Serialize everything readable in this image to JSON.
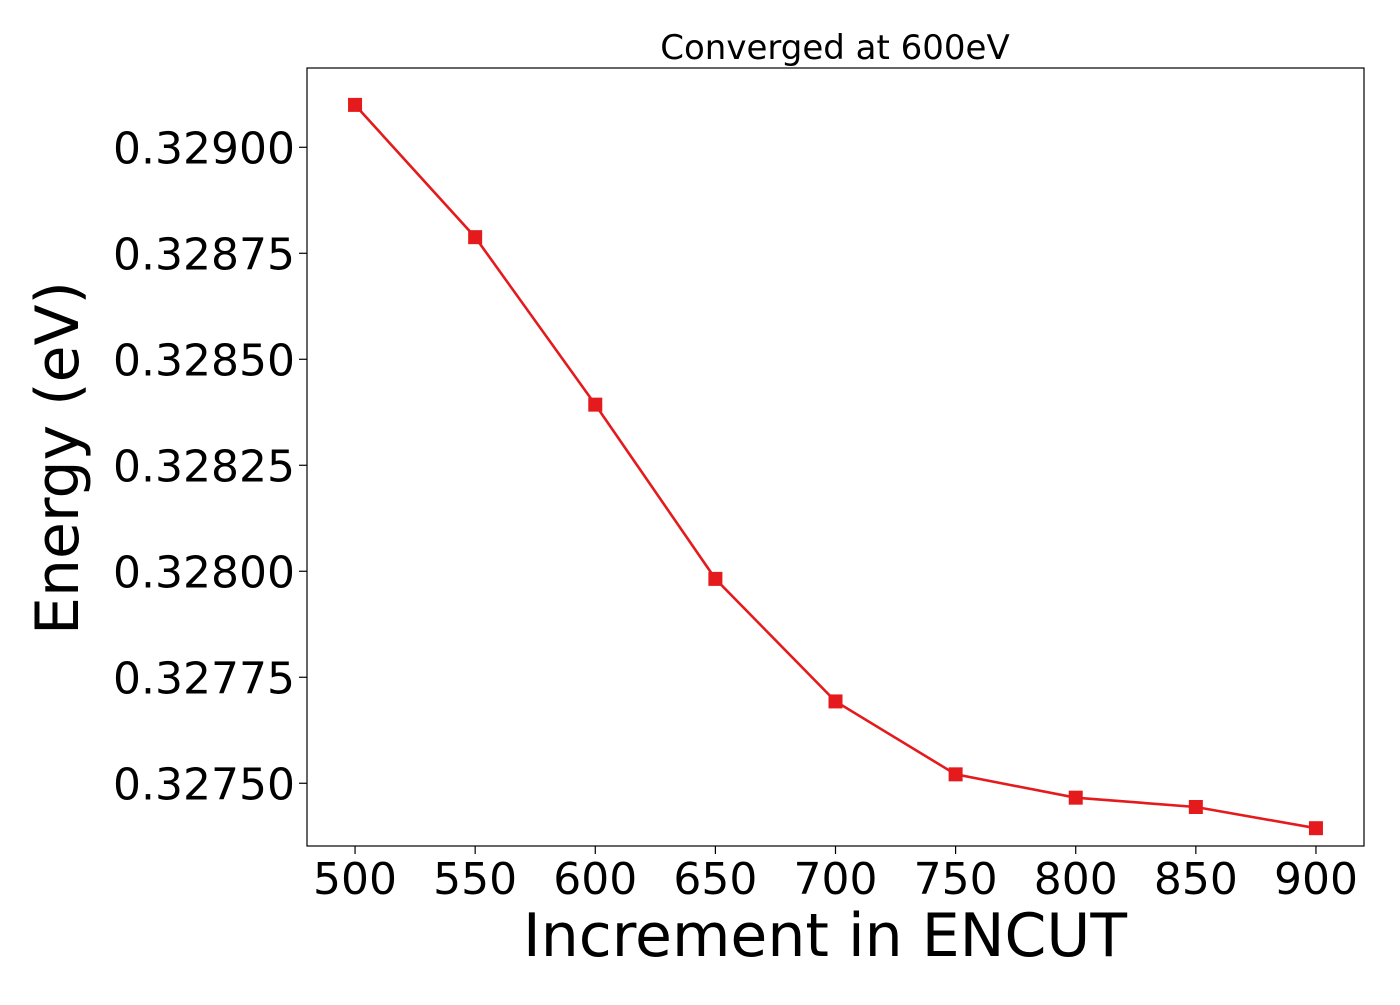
{
  "chart_data": {
    "type": "line",
    "title": "Converged at 600eV",
    "xlabel": "Increment in ENCUT",
    "ylabel": "Energy (eV)",
    "x": [
      500,
      550,
      600,
      650,
      700,
      750,
      800,
      850,
      900
    ],
    "series": [
      {
        "values": [
          0.3291,
          0.328788,
          0.328393,
          0.327982,
          0.327693,
          0.327521,
          0.327466,
          0.327444,
          0.327394
        ],
        "color": "#e41a1c",
        "marker": "square"
      }
    ],
    "xticks": [
      "500",
      "550",
      "600",
      "650",
      "700",
      "750",
      "800",
      "850",
      "900"
    ],
    "yticks": [
      "0.32750",
      "0.32775",
      "0.32800",
      "0.32825",
      "0.32850",
      "0.32875",
      "0.32900"
    ],
    "xlim": [
      480,
      920
    ],
    "ylim": [
      0.327352,
      0.329187
    ],
    "grid": false,
    "legend": "none"
  }
}
